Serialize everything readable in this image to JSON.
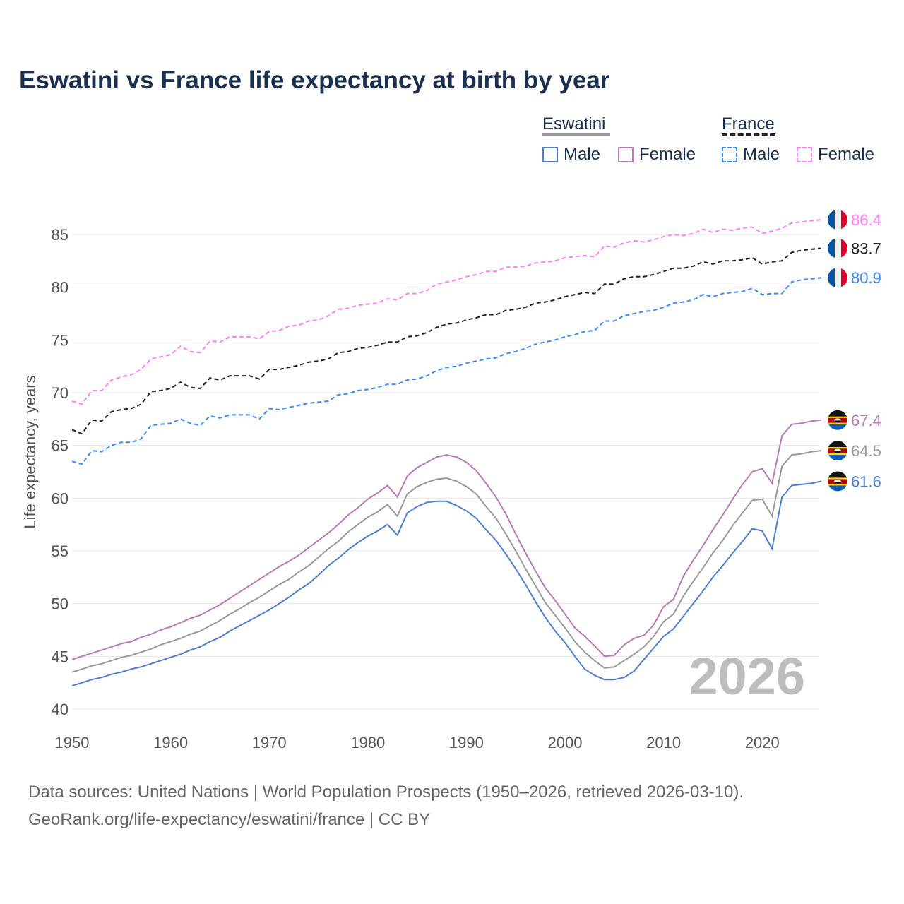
{
  "chart_data": {
    "type": "line",
    "title": "Eswatini vs France life expectancy at birth by year",
    "xlabel": "",
    "ylabel": "Life expectancy, years",
    "xlim": [
      1950,
      2026
    ],
    "ylim": [
      40,
      87.5
    ],
    "x_ticks": [
      "1950",
      "1960",
      "1970",
      "1980",
      "1990",
      "2000",
      "2010",
      "2020"
    ],
    "y_ticks": [
      "40",
      "45",
      "50",
      "55",
      "60",
      "65",
      "70",
      "75",
      "80",
      "85"
    ],
    "grid": true,
    "year_watermark": "2026",
    "x_start": 1950,
    "legend": {
      "placement": "top-right",
      "groups": [
        {
          "name": "Eswatini",
          "items": [
            "Male",
            "Female"
          ]
        },
        {
          "name": "France",
          "items": [
            "Male",
            "Female"
          ]
        }
      ]
    },
    "series": [
      {
        "name": "France Female",
        "country": "France",
        "color": "#ff7ff7",
        "dashed": true,
        "end_label": "86.4",
        "values": [
          69.2,
          68.9,
          70.2,
          70.2,
          71.2,
          71.5,
          71.7,
          72.2,
          73.2,
          73.4,
          73.6,
          74.4,
          73.9,
          73.8,
          74.9,
          74.8,
          75.3,
          75.3,
          75.3,
          75.1,
          75.8,
          75.9,
          76.3,
          76.4,
          76.8,
          76.9,
          77.3,
          77.9,
          78.0,
          78.3,
          78.4,
          78.5,
          78.9,
          78.8,
          79.4,
          79.4,
          79.7,
          80.3,
          80.5,
          80.7,
          81.0,
          81.2,
          81.5,
          81.5,
          81.9,
          81.9,
          82.0,
          82.3,
          82.4,
          82.5,
          82.8,
          82.9,
          83.0,
          82.9,
          83.9,
          83.8,
          84.2,
          84.4,
          84.3,
          84.5,
          84.8,
          85.0,
          84.9,
          85.1,
          85.5,
          85.2,
          85.5,
          85.4,
          85.6,
          85.7,
          85.1,
          85.3,
          85.6,
          86.1,
          86.2,
          86.3,
          86.4
        ]
      },
      {
        "name": "France Total",
        "country": "France",
        "color": "#222222",
        "dashed": true,
        "end_label": "83.7",
        "values": [
          66.5,
          66.1,
          67.4,
          67.3,
          68.2,
          68.4,
          68.5,
          68.9,
          70.1,
          70.2,
          70.4,
          71.0,
          70.5,
          70.4,
          71.4,
          71.2,
          71.6,
          71.6,
          71.6,
          71.3,
          72.2,
          72.2,
          72.4,
          72.6,
          72.9,
          73.0,
          73.2,
          73.8,
          73.9,
          74.2,
          74.3,
          74.5,
          74.8,
          74.8,
          75.3,
          75.4,
          75.7,
          76.2,
          76.5,
          76.6,
          76.9,
          77.1,
          77.4,
          77.4,
          77.8,
          77.9,
          78.1,
          78.5,
          78.6,
          78.8,
          79.1,
          79.3,
          79.5,
          79.4,
          80.3,
          80.3,
          80.8,
          81.0,
          81.0,
          81.2,
          81.5,
          81.8,
          81.8,
          82.0,
          82.4,
          82.2,
          82.5,
          82.5,
          82.6,
          82.8,
          82.2,
          82.4,
          82.5,
          83.3,
          83.5,
          83.6,
          83.7
        ]
      },
      {
        "name": "France Male",
        "country": "France",
        "color": "#3d8bff",
        "dashed": true,
        "end_label": "80.9",
        "values": [
          63.5,
          63.2,
          64.5,
          64.4,
          65.0,
          65.3,
          65.3,
          65.6,
          66.9,
          67.0,
          67.1,
          67.5,
          67.1,
          66.9,
          67.8,
          67.6,
          67.9,
          67.9,
          67.9,
          67.5,
          68.5,
          68.4,
          68.6,
          68.8,
          69.0,
          69.1,
          69.2,
          69.8,
          69.9,
          70.2,
          70.3,
          70.5,
          70.8,
          70.8,
          71.2,
          71.3,
          71.6,
          72.1,
          72.4,
          72.5,
          72.8,
          73.0,
          73.2,
          73.3,
          73.7,
          73.9,
          74.2,
          74.6,
          74.8,
          75.0,
          75.3,
          75.5,
          75.8,
          75.9,
          76.8,
          76.8,
          77.3,
          77.5,
          77.7,
          77.8,
          78.1,
          78.5,
          78.6,
          78.8,
          79.3,
          79.1,
          79.4,
          79.5,
          79.6,
          79.9,
          79.3,
          79.4,
          79.4,
          80.5,
          80.7,
          80.8,
          80.9
        ]
      },
      {
        "name": "Eswatini Female",
        "country": "Eswatini",
        "color": "#b87ab8",
        "dashed": false,
        "end_label": "67.4",
        "values": [
          44.7,
          45.0,
          45.3,
          45.6,
          45.9,
          46.2,
          46.4,
          46.8,
          47.1,
          47.5,
          47.8,
          48.2,
          48.6,
          48.9,
          49.4,
          49.9,
          50.5,
          51.1,
          51.7,
          52.3,
          52.9,
          53.5,
          54.0,
          54.6,
          55.3,
          56.0,
          56.7,
          57.5,
          58.4,
          59.1,
          59.9,
          60.5,
          61.2,
          60.1,
          62.1,
          62.9,
          63.4,
          63.9,
          64.1,
          63.9,
          63.4,
          62.6,
          61.4,
          60.1,
          58.5,
          56.6,
          54.8,
          53.1,
          51.5,
          50.3,
          49.0,
          47.7,
          46.9,
          46.0,
          45.0,
          45.1,
          46.1,
          46.7,
          47.0,
          48.0,
          49.7,
          50.4,
          52.6,
          54.1,
          55.5,
          57.0,
          58.4,
          59.9,
          61.3,
          62.5,
          62.8,
          61.4,
          65.9,
          67.0,
          67.1,
          67.3,
          67.4
        ]
      },
      {
        "name": "Eswatini Total",
        "country": "Eswatini",
        "color": "#999999",
        "dashed": false,
        "end_label": "64.5",
        "values": [
          43.5,
          43.8,
          44.1,
          44.3,
          44.6,
          44.9,
          45.1,
          45.4,
          45.7,
          46.1,
          46.4,
          46.7,
          47.1,
          47.4,
          47.9,
          48.4,
          49.0,
          49.5,
          50.1,
          50.6,
          51.2,
          51.8,
          52.3,
          53.0,
          53.6,
          54.4,
          55.2,
          55.9,
          56.8,
          57.5,
          58.2,
          58.7,
          59.4,
          58.3,
          60.4,
          61.1,
          61.5,
          61.8,
          61.9,
          61.6,
          61.1,
          60.4,
          59.2,
          58.1,
          56.6,
          55.0,
          53.3,
          51.7,
          50.1,
          48.9,
          47.7,
          46.4,
          45.4,
          44.6,
          43.9,
          44.0,
          44.6,
          45.2,
          45.9,
          46.9,
          48.3,
          49.0,
          50.7,
          52.1,
          53.4,
          54.8,
          56.0,
          57.4,
          58.6,
          59.8,
          59.9,
          58.3,
          63.0,
          64.1,
          64.2,
          64.4,
          64.5
        ]
      },
      {
        "name": "Eswatini Male",
        "country": "Eswatini",
        "color": "#4f7fcc",
        "dashed": false,
        "end_label": "61.6",
        "values": [
          42.2,
          42.5,
          42.8,
          43.0,
          43.3,
          43.5,
          43.8,
          44.0,
          44.3,
          44.6,
          44.9,
          45.2,
          45.6,
          45.9,
          46.4,
          46.8,
          47.4,
          47.9,
          48.4,
          48.9,
          49.4,
          50.0,
          50.6,
          51.3,
          51.9,
          52.7,
          53.6,
          54.3,
          55.1,
          55.8,
          56.4,
          56.9,
          57.5,
          56.5,
          58.6,
          59.2,
          59.6,
          59.7,
          59.7,
          59.3,
          58.8,
          58.1,
          57.0,
          56.0,
          54.7,
          53.3,
          51.8,
          50.2,
          48.7,
          47.4,
          46.3,
          45.0,
          43.8,
          43.2,
          42.8,
          42.8,
          43.0,
          43.6,
          44.7,
          45.8,
          46.9,
          47.6,
          48.8,
          50.0,
          51.2,
          52.5,
          53.6,
          54.8,
          55.9,
          57.1,
          56.9,
          55.2,
          60.1,
          61.2,
          61.3,
          61.4,
          61.6
        ]
      }
    ]
  },
  "footer": {
    "line1": "Data sources: United Nations | World Population Prospects (1950–2026, retrieved 2026-03-10).",
    "line2": "GeoRank.org/life-expectancy/eswatini/france | CC BY"
  }
}
